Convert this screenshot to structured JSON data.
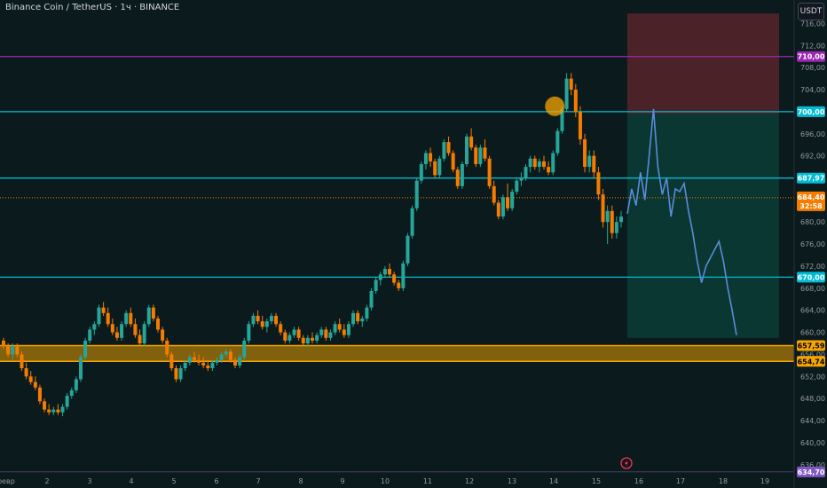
{
  "header": {
    "title": "Binance Coin / TetherUS · 1ч · BINANCE",
    "currency": "USDT"
  },
  "chart_data": {
    "type": "candlestick",
    "pair": "Binance Coin / TetherUS",
    "timeframe": "1ч",
    "exchange": "BINANCE",
    "y_range": [
      635,
      718
    ],
    "y_ticks": [
      "716,00",
      "712,00",
      "708,00",
      "704,00",
      "700,00",
      "696,00",
      "692,00",
      "688,00",
      "684,00",
      "680,00",
      "676,00",
      "672,00",
      "668,00",
      "664,00",
      "660,00",
      "656,00",
      "652,00",
      "648,00",
      "644,00",
      "640,00",
      "636,00"
    ],
    "x_ticks": [
      "февр",
      "2",
      "3",
      "4",
      "5",
      "6",
      "7",
      "8",
      "9",
      "10",
      "11",
      "12",
      "13",
      "14",
      "15",
      "16",
      "17",
      "18",
      "19"
    ],
    "horizontal_levels": [
      {
        "value": 710.0,
        "label": "710,00",
        "color": "#9c27b0"
      },
      {
        "value": 700.0,
        "label": "700,00",
        "color": "#00bcd4"
      },
      {
        "value": 687.97,
        "label": "687,97",
        "color": "#00bcd4"
      },
      {
        "value": 670.0,
        "label": "670,00",
        "color": "#00bcd4"
      },
      {
        "value": 634.7,
        "label": "634,70",
        "color": "#7e57c2"
      }
    ],
    "current_price": {
      "value": 684.4,
      "label": "684,40",
      "countdown": "32:58",
      "color": "#f57c00"
    },
    "support_zone": {
      "top": 657.59,
      "bottom": 654.74,
      "top_label": "657,59",
      "bottom_label": "654,74",
      "color": "#f7a600"
    },
    "position_tool": {
      "entry": 699.6,
      "stop": 717.8,
      "target": 659.0
    },
    "candles_ohlc": [
      [
        658.5,
        659.0,
        657.0,
        657.5
      ],
      [
        657.5,
        658.0,
        655.5,
        656.0
      ],
      [
        656.0,
        658.0,
        655.0,
        657.5
      ],
      [
        657.5,
        658.0,
        655.5,
        656.0
      ],
      [
        656.0,
        656.5,
        653.0,
        653.5
      ],
      [
        653.5,
        654.5,
        651.5,
        652.0
      ],
      [
        652.0,
        653.0,
        650.5,
        651.0
      ],
      [
        651.0,
        652.0,
        649.5,
        650.0
      ],
      [
        650.0,
        650.5,
        647.0,
        647.5
      ],
      [
        647.5,
        648.0,
        645.5,
        646.0
      ],
      [
        646.0,
        647.0,
        645.0,
        645.5
      ],
      [
        645.5,
        646.5,
        645.0,
        646.0
      ],
      [
        646.0,
        647.0,
        645.0,
        645.5
      ],
      [
        645.5,
        647.0,
        644.8,
        646.5
      ],
      [
        646.5,
        649.0,
        646.0,
        648.5
      ],
      [
        648.5,
        650.0,
        648.0,
        649.5
      ],
      [
        649.5,
        652.0,
        649.0,
        651.5
      ],
      [
        651.5,
        656.0,
        651.0,
        655.5
      ],
      [
        655.5,
        659.0,
        655.0,
        658.5
      ],
      [
        658.5,
        661.0,
        658.0,
        660.5
      ],
      [
        660.5,
        662.0,
        659.5,
        661.5
      ],
      [
        661.5,
        665.0,
        661.0,
        664.5
      ],
      [
        664.5,
        665.5,
        663.0,
        663.5
      ],
      [
        663.5,
        664.5,
        661.0,
        661.5
      ],
      [
        661.5,
        662.5,
        659.5,
        660.0
      ],
      [
        660.0,
        661.0,
        658.5,
        659.0
      ],
      [
        659.0,
        662.0,
        658.5,
        661.5
      ],
      [
        661.5,
        664.0,
        661.0,
        663.5
      ],
      [
        663.5,
        664.5,
        661.0,
        661.5
      ],
      [
        661.5,
        662.5,
        659.0,
        659.5
      ],
      [
        659.5,
        660.5,
        657.5,
        658.0
      ],
      [
        658.0,
        662.0,
        657.5,
        661.5
      ],
      [
        661.5,
        665.0,
        661.0,
        664.5
      ],
      [
        664.5,
        665.0,
        662.0,
        662.5
      ],
      [
        662.5,
        663.0,
        660.0,
        660.5
      ],
      [
        660.5,
        661.0,
        658.0,
        658.5
      ],
      [
        658.5,
        659.0,
        655.5,
        656.0
      ],
      [
        656.0,
        656.5,
        653.0,
        653.5
      ],
      [
        653.5,
        654.0,
        651.0,
        651.5
      ],
      [
        651.5,
        654.0,
        651.0,
        653.5
      ],
      [
        653.5,
        655.0,
        653.0,
        654.5
      ],
      [
        654.5,
        656.0,
        654.0,
        655.5
      ],
      [
        655.5,
        656.5,
        654.5,
        655.0
      ],
      [
        655.0,
        656.0,
        654.0,
        654.5
      ],
      [
        654.5,
        655.5,
        653.5,
        654.0
      ],
      [
        654.0,
        655.0,
        653.0,
        653.5
      ],
      [
        653.5,
        655.0,
        653.0,
        654.5
      ],
      [
        654.5,
        655.5,
        654.0,
        655.0
      ],
      [
        655.0,
        656.5,
        654.5,
        656.0
      ],
      [
        656.0,
        657.0,
        655.5,
        656.5
      ],
      [
        656.5,
        657.0,
        654.5,
        655.0
      ],
      [
        655.0,
        655.5,
        653.5,
        654.0
      ],
      [
        654.0,
        656.0,
        653.5,
        655.5
      ],
      [
        655.5,
        659.0,
        655.0,
        658.5
      ],
      [
        658.5,
        662.0,
        658.0,
        661.5
      ],
      [
        661.5,
        663.5,
        661.0,
        663.0
      ],
      [
        663.0,
        664.0,
        661.5,
        662.0
      ],
      [
        662.0,
        663.0,
        660.5,
        661.0
      ],
      [
        661.0,
        662.5,
        660.0,
        662.0
      ],
      [
        662.0,
        663.5,
        661.5,
        663.0
      ],
      [
        663.0,
        663.5,
        661.0,
        661.5
      ],
      [
        661.5,
        662.0,
        659.5,
        660.0
      ],
      [
        660.0,
        660.5,
        658.0,
        658.5
      ],
      [
        658.5,
        660.0,
        658.0,
        659.5
      ],
      [
        659.5,
        661.0,
        659.0,
        660.5
      ],
      [
        660.5,
        661.0,
        658.5,
        659.0
      ],
      [
        659.0,
        659.5,
        657.5,
        658.0
      ],
      [
        658.0,
        659.5,
        657.5,
        659.0
      ],
      [
        659.0,
        660.0,
        658.0,
        658.5
      ],
      [
        658.5,
        660.0,
        658.0,
        659.5
      ],
      [
        659.5,
        661.0,
        659.0,
        660.5
      ],
      [
        660.5,
        661.0,
        658.5,
        659.0
      ],
      [
        659.0,
        660.5,
        658.5,
        660.0
      ],
      [
        660.0,
        662.0,
        659.5,
        661.5
      ],
      [
        661.5,
        662.5,
        660.0,
        660.5
      ],
      [
        660.5,
        661.5,
        659.0,
        659.5
      ],
      [
        659.5,
        662.0,
        659.0,
        661.5
      ],
      [
        661.5,
        664.0,
        661.0,
        663.5
      ],
      [
        663.5,
        664.0,
        661.5,
        662.0
      ],
      [
        662.0,
        663.0,
        661.0,
        662.5
      ],
      [
        662.5,
        665.0,
        662.0,
        664.5
      ],
      [
        664.5,
        668.0,
        664.0,
        667.5
      ],
      [
        667.5,
        670.0,
        667.0,
        669.5
      ],
      [
        669.5,
        671.0,
        668.5,
        670.5
      ],
      [
        670.5,
        672.0,
        670.0,
        671.5
      ],
      [
        671.5,
        672.5,
        670.0,
        670.5
      ],
      [
        670.5,
        671.0,
        668.5,
        669.0
      ],
      [
        669.0,
        669.5,
        667.5,
        668.0
      ],
      [
        668.0,
        673.0,
        667.5,
        672.5
      ],
      [
        672.5,
        678.0,
        672.0,
        677.5
      ],
      [
        677.5,
        683.0,
        677.0,
        682.5
      ],
      [
        682.5,
        688.0,
        682.0,
        687.5
      ],
      [
        687.5,
        691.0,
        687.0,
        690.5
      ],
      [
        690.5,
        693.0,
        689.5,
        692.5
      ],
      [
        692.5,
        693.5,
        690.0,
        691.0
      ],
      [
        691.0,
        691.5,
        688.0,
        688.5
      ],
      [
        688.5,
        692.0,
        688.0,
        691.5
      ],
      [
        691.5,
        695.0,
        691.0,
        694.5
      ],
      [
        694.5,
        695.5,
        692.0,
        692.5
      ],
      [
        692.5,
        693.0,
        689.0,
        689.5
      ],
      [
        689.5,
        690.0,
        686.0,
        686.5
      ],
      [
        686.5,
        691.0,
        686.0,
        690.5
      ],
      [
        690.5,
        696.0,
        690.0,
        695.5
      ],
      [
        695.5,
        697.0,
        693.0,
        693.5
      ],
      [
        693.5,
        694.0,
        690.0,
        690.5
      ],
      [
        690.5,
        694.0,
        690.0,
        693.5
      ],
      [
        693.5,
        695.0,
        691.0,
        691.5
      ],
      [
        691.5,
        692.0,
        686.0,
        686.5
      ],
      [
        686.5,
        687.5,
        683.0,
        683.5
      ],
      [
        683.5,
        684.0,
        680.5,
        681.0
      ],
      [
        681.0,
        685.0,
        680.5,
        684.5
      ],
      [
        684.5,
        687.0,
        682.0,
        682.5
      ],
      [
        682.5,
        686.0,
        682.0,
        685.5
      ],
      [
        685.5,
        688.0,
        685.0,
        687.5
      ],
      [
        687.5,
        689.0,
        686.5,
        688.0
      ],
      [
        688.0,
        690.5,
        687.5,
        690.0
      ],
      [
        690.0,
        692.0,
        689.0,
        691.5
      ],
      [
        691.5,
        692.0,
        689.5,
        690.0
      ],
      [
        690.0,
        691.5,
        689.0,
        691.0
      ],
      [
        691.0,
        692.0,
        689.5,
        690.0
      ],
      [
        690.0,
        691.0,
        688.5,
        689.0
      ],
      [
        689.0,
        693.0,
        688.5,
        692.5
      ],
      [
        692.5,
        697.0,
        692.0,
        696.5
      ],
      [
        696.5,
        701.0,
        696.0,
        700.5
      ],
      [
        700.5,
        707.0,
        700.0,
        706.0
      ],
      [
        706.0,
        707.0,
        703.0,
        704.0
      ],
      [
        704.0,
        705.0,
        699.0,
        700.0
      ],
      [
        700.0,
        701.0,
        694.0,
        695.0
      ],
      [
        695.0,
        696.0,
        689.0,
        690.0
      ],
      [
        690.0,
        693.0,
        689.0,
        692.0
      ],
      [
        692.0,
        693.0,
        688.0,
        689.0
      ],
      [
        689.0,
        690.0,
        684.0,
        685.0
      ],
      [
        685.0,
        686.0,
        679.0,
        680.0
      ],
      [
        680.0,
        683.0,
        676.0,
        682.0
      ],
      [
        682.0,
        683.0,
        677.0,
        678.0
      ],
      [
        678.0,
        681.0,
        677.0,
        680.0
      ],
      [
        680.0,
        682.0,
        679.0,
        681.0
      ]
    ],
    "projection_path": [
      [
        699.6,
        681.5
      ],
      [
        700.6,
        686.0
      ],
      [
        701.6,
        683.0
      ],
      [
        702.6,
        689.0
      ],
      [
        703.6,
        684.0
      ],
      [
        704.6,
        692.0
      ],
      [
        705.6,
        700.5
      ],
      [
        706.6,
        690.0
      ],
      [
        707.6,
        685.0
      ],
      [
        708.6,
        688.0
      ],
      [
        709.6,
        681.0
      ],
      [
        710.6,
        686.0
      ],
      [
        711.6,
        685.5
      ],
      [
        712.6,
        687.0
      ],
      [
        713.6,
        682.0
      ],
      [
        714.6,
        678.0
      ],
      [
        715.6,
        673.0
      ],
      [
        716.6,
        669.0
      ],
      [
        717.6,
        672.0
      ],
      [
        718.6,
        673.5
      ],
      [
        719.6,
        675.0
      ],
      [
        720.6,
        676.5
      ],
      [
        721.6,
        673.0
      ],
      [
        722.6,
        668.0
      ],
      [
        723.6,
        664.0
      ],
      [
        724.6,
        659.5
      ]
    ]
  }
}
